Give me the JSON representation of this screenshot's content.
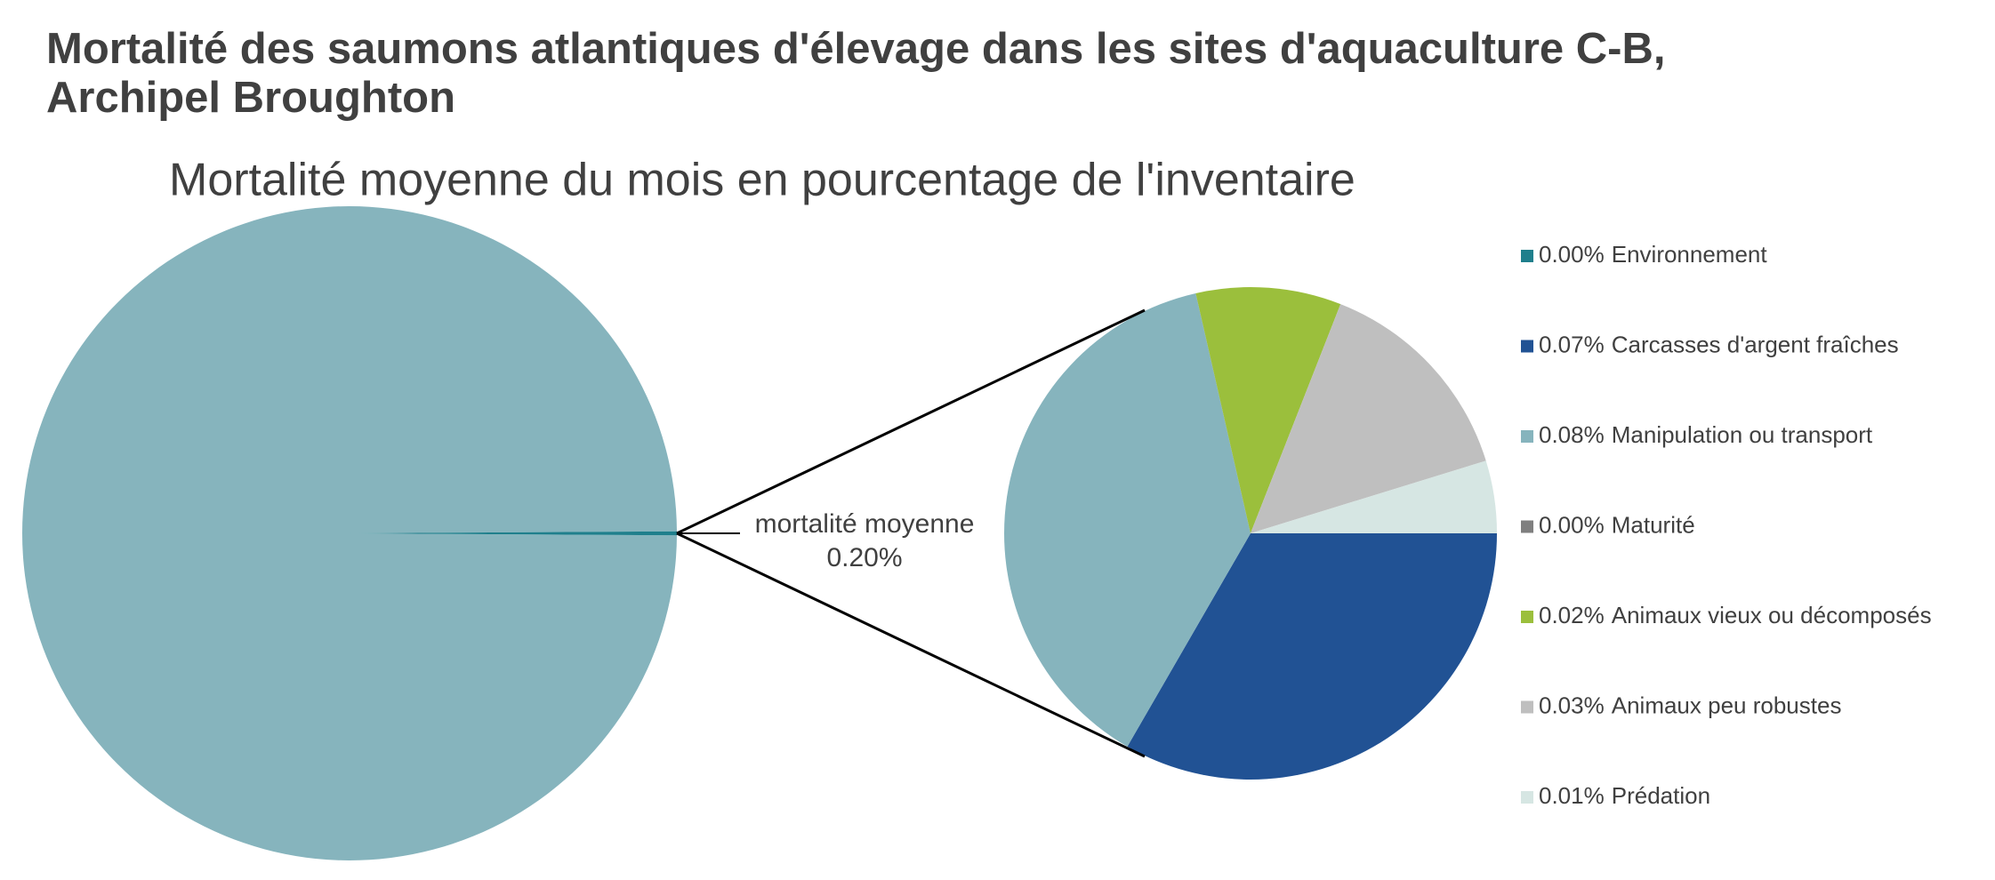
{
  "chart_data": {
    "type": "pie-of-pie",
    "title": [
      "Mortalité des saumons atlantiques d'élevage dans les sites d'aquaculture C-B,",
      "Archipel Broughton"
    ],
    "subtitle": "Mortalité moyenne du mois en pourcentage de l'inventaire",
    "main": {
      "categories": [
        null,
        "mortalité moyenne"
      ],
      "values": [
        99.8,
        0.2
      ],
      "value_labels": [
        null,
        "0.20%"
      ],
      "colors": [
        "#86b4bd",
        "#1f7f8c"
      ]
    },
    "detail": {
      "categories": [
        "Environnement",
        "Carcasses d'argent fraîches",
        "Manipulation ou transport",
        "Maturité",
        "Animaux vieux ou décomposés",
        "Animaux peu robustes",
        "Prédation"
      ],
      "values": [
        0.0,
        0.07,
        0.08,
        0.0,
        0.02,
        0.03,
        0.01
      ],
      "value_labels": [
        "0.00%",
        "0.07%",
        "0.08%",
        "0.00%",
        "0.02%",
        "0.03%",
        "0.01%"
      ],
      "colors": [
        "#1f7f8c",
        "#215294",
        "#86b4bd",
        "#7f7f7f",
        "#9bbf3c",
        "#bfbfbf",
        "#d6e6e3"
      ]
    },
    "legend": "right"
  }
}
